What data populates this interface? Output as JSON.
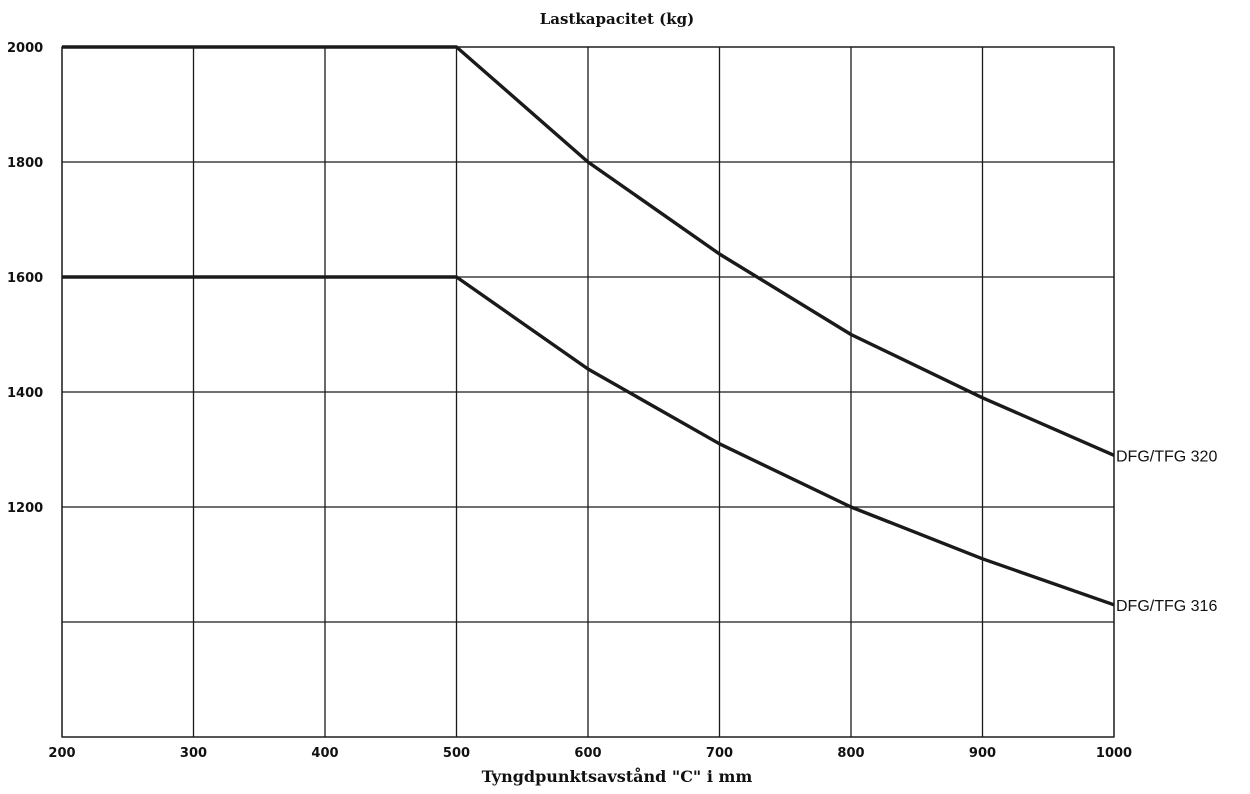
{
  "chart_data": {
    "type": "line",
    "title": "Lastkapacitet (kg)",
    "xlabel": "Tyngdpunktsavstånd \"C\" i mm",
    "ylabel": "",
    "xlim": [
      200,
      1000
    ],
    "ylim": [
      800,
      2000
    ],
    "x_ticks": [
      200,
      300,
      400,
      500,
      600,
      700,
      800,
      900,
      1000
    ],
    "y_gridlines": [
      800,
      1000,
      1200,
      1400,
      1600,
      1800,
      2000
    ],
    "y_tick_labels": [
      1200,
      1400,
      1600,
      1800,
      2000
    ],
    "grid": true,
    "legend": "none",
    "series_label_placement": "right-end",
    "series": [
      {
        "name": "DFG/TFG 320",
        "x": [
          200,
          500,
          600,
          700,
          800,
          900,
          1000
        ],
        "y": [
          2000,
          2000,
          1800,
          1640,
          1500,
          1390,
          1290
        ]
      },
      {
        "name": "DFG/TFG 316",
        "x": [
          200,
          500,
          600,
          700,
          800,
          900,
          1000
        ],
        "y": [
          1600,
          1600,
          1440,
          1310,
          1200,
          1110,
          1030
        ]
      }
    ],
    "colors": {
      "line": "#1a1a1a",
      "grid": "#1a1a1a",
      "text": "#111111"
    }
  }
}
